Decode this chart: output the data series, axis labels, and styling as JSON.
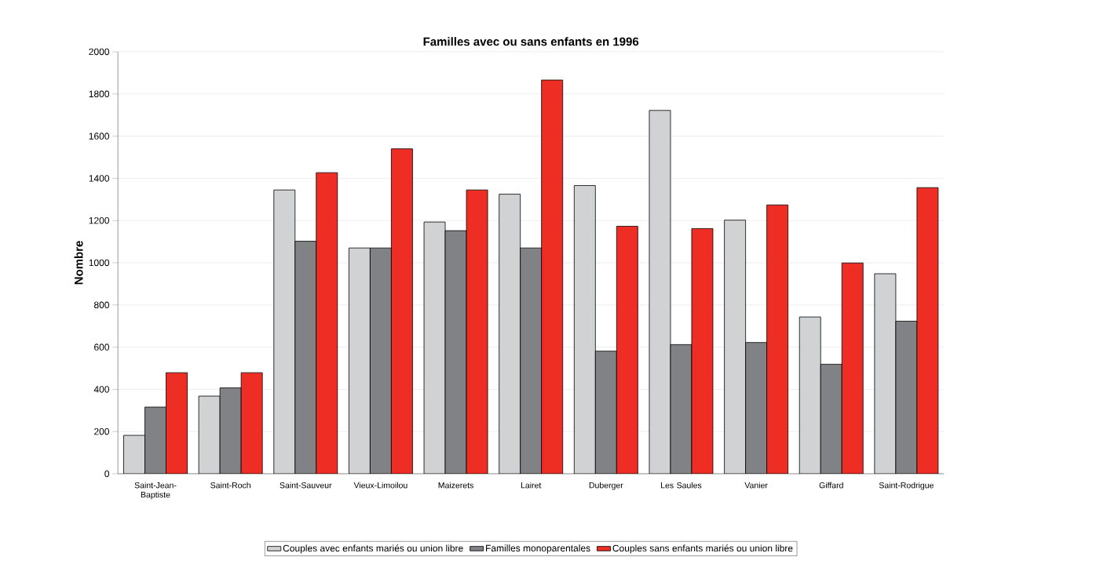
{
  "chart_data": {
    "type": "bar",
    "title": "**Familles avec ou sans enfants en 1996**",
    "ylabel": "**Nombre**",
    "categories": [
      "Saint-Jean-Baptiste",
      "Saint-Roch",
      "Saint-Sauveur",
      "Vieux-Limoilou",
      "Maizerets",
      "Lairet",
      "Duberger",
      "Les Saules",
      "Vanier",
      "Giffard",
      "Saint-Rodrigue"
    ],
    "series": [
      {
        "name": "Couples avec enfants mariés ou union libre",
        "color": "#d1d2d4",
        "values": [
          182,
          368,
          1345,
          1070,
          1193,
          1325,
          1366,
          1722,
          1202,
          743,
          948
        ]
      },
      {
        "name": "Familles monoparentales",
        "color": "#808285",
        "values": [
          316,
          407,
          1102,
          1070,
          1152,
          1070,
          581,
          612,
          622,
          519,
          723
        ]
      },
      {
        "name": "Couples sans enfants mariés ou union libre",
        "color": "#ee2e24",
        "values": [
          479,
          479,
          1427,
          1540,
          1345,
          1866,
          1173,
          1162,
          1274,
          999,
          1356
        ]
      }
    ],
    "ylim": [
      0,
      2000
    ],
    "yticks": [
      0,
      200,
      400,
      600,
      800,
      1000,
      1200,
      1400,
      1600,
      1800,
      2000
    ],
    "grid": "y",
    "legend": "bottom"
  }
}
